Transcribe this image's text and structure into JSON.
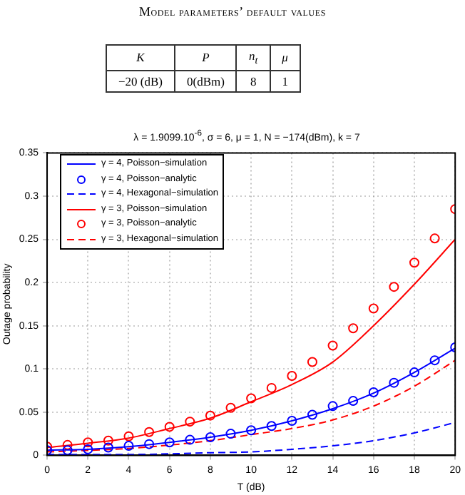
{
  "chart_data": {
    "type": "line",
    "title": "λ = 1.9099.10$^{-6}$, σ = 6, μ = 1, N = −174(dBm), k = 7",
    "xlabel": "T (dB)",
    "ylabel": "Outage probability",
    "annotations": [
      "Model parameters’ default values",
      "K",
      "P",
      "n$_{t}$",
      "μ",
      "−20 (dB)",
      "0(dBm)",
      "8",
      "1"
    ],
    "xlim": [
      0,
      20
    ],
    "xticks": [
      0,
      2,
      4,
      6,
      8,
      10,
      12,
      14,
      16,
      18,
      20
    ],
    "ylim": [
      0,
      0.35
    ],
    "yticks": [
      0,
      0.05,
      0.1,
      0.15,
      0.2,
      0.25,
      0.3,
      0.35
    ],
    "grid": true,
    "legend": "top left",
    "series": [
      {
        "name": "γ = 4, Poisson−simulation",
        "color": "#0000ff",
        "line_style": "solid",
        "marker": "none",
        "x": [
          0,
          2,
          4,
          6,
          8,
          10,
          12,
          14,
          16,
          18,
          20
        ],
        "values": [
          0.006,
          0.007,
          0.01,
          0.015,
          0.021,
          0.029,
          0.04,
          0.054,
          0.072,
          0.096,
          0.124
        ]
      },
      {
        "name": "γ = 4, Poisson−analytic",
        "type": "scatter",
        "color": "#0000ff",
        "marker": "circle",
        "x": [
          0,
          1,
          2,
          3,
          4,
          5,
          6,
          7,
          8,
          9,
          10,
          11,
          12,
          13,
          14,
          15,
          16,
          17,
          18,
          19,
          20
        ],
        "values": [
          0.006,
          0.006,
          0.007,
          0.009,
          0.011,
          0.013,
          0.015,
          0.018,
          0.021,
          0.025,
          0.029,
          0.034,
          0.04,
          0.047,
          0.057,
          0.063,
          0.073,
          0.084,
          0.096,
          0.11,
          0.125
        ]
      },
      {
        "name": "γ = 4, Hexagonal−simulation",
        "color": "#0000ff",
        "line_style": "dashed",
        "marker": "none",
        "x": [
          0,
          4,
          8,
          10,
          12,
          14,
          16,
          18,
          20
        ],
        "values": [
          0.001,
          0.001,
          0.003,
          0.004,
          0.007,
          0.011,
          0.017,
          0.026,
          0.038
        ]
      },
      {
        "name": "γ = 3, Poisson−simulation",
        "color": "#ff0000",
        "line_style": "solid",
        "marker": "none",
        "x": [
          0,
          2,
          4,
          6,
          8,
          10,
          12,
          14,
          16,
          18,
          20
        ],
        "values": [
          0.009,
          0.014,
          0.02,
          0.031,
          0.043,
          0.062,
          0.082,
          0.108,
          0.15,
          0.198,
          0.25
        ]
      },
      {
        "name": "γ = 3, Poisson−analytic",
        "type": "scatter",
        "color": "#ff0000",
        "marker": "circle",
        "x": [
          0,
          1,
          2,
          3,
          4,
          5,
          6,
          7,
          8,
          9,
          10,
          11,
          12,
          13,
          14,
          15,
          16,
          17,
          18,
          19,
          20
        ],
        "values": [
          0.01,
          0.012,
          0.015,
          0.017,
          0.022,
          0.027,
          0.033,
          0.039,
          0.046,
          0.055,
          0.066,
          0.078,
          0.092,
          0.108,
          0.127,
          0.147,
          0.17,
          0.195,
          0.223,
          0.251,
          0.285
        ]
      },
      {
        "name": "γ = 3, Hexagonal−simulation",
        "color": "#ff0000",
        "line_style": "dashed",
        "marker": "none",
        "x": [
          0,
          4,
          8,
          10,
          12,
          14,
          16,
          18,
          20
        ],
        "values": [
          0.004,
          0.008,
          0.017,
          0.024,
          0.031,
          0.041,
          0.057,
          0.08,
          0.11
        ]
      }
    ]
  }
}
